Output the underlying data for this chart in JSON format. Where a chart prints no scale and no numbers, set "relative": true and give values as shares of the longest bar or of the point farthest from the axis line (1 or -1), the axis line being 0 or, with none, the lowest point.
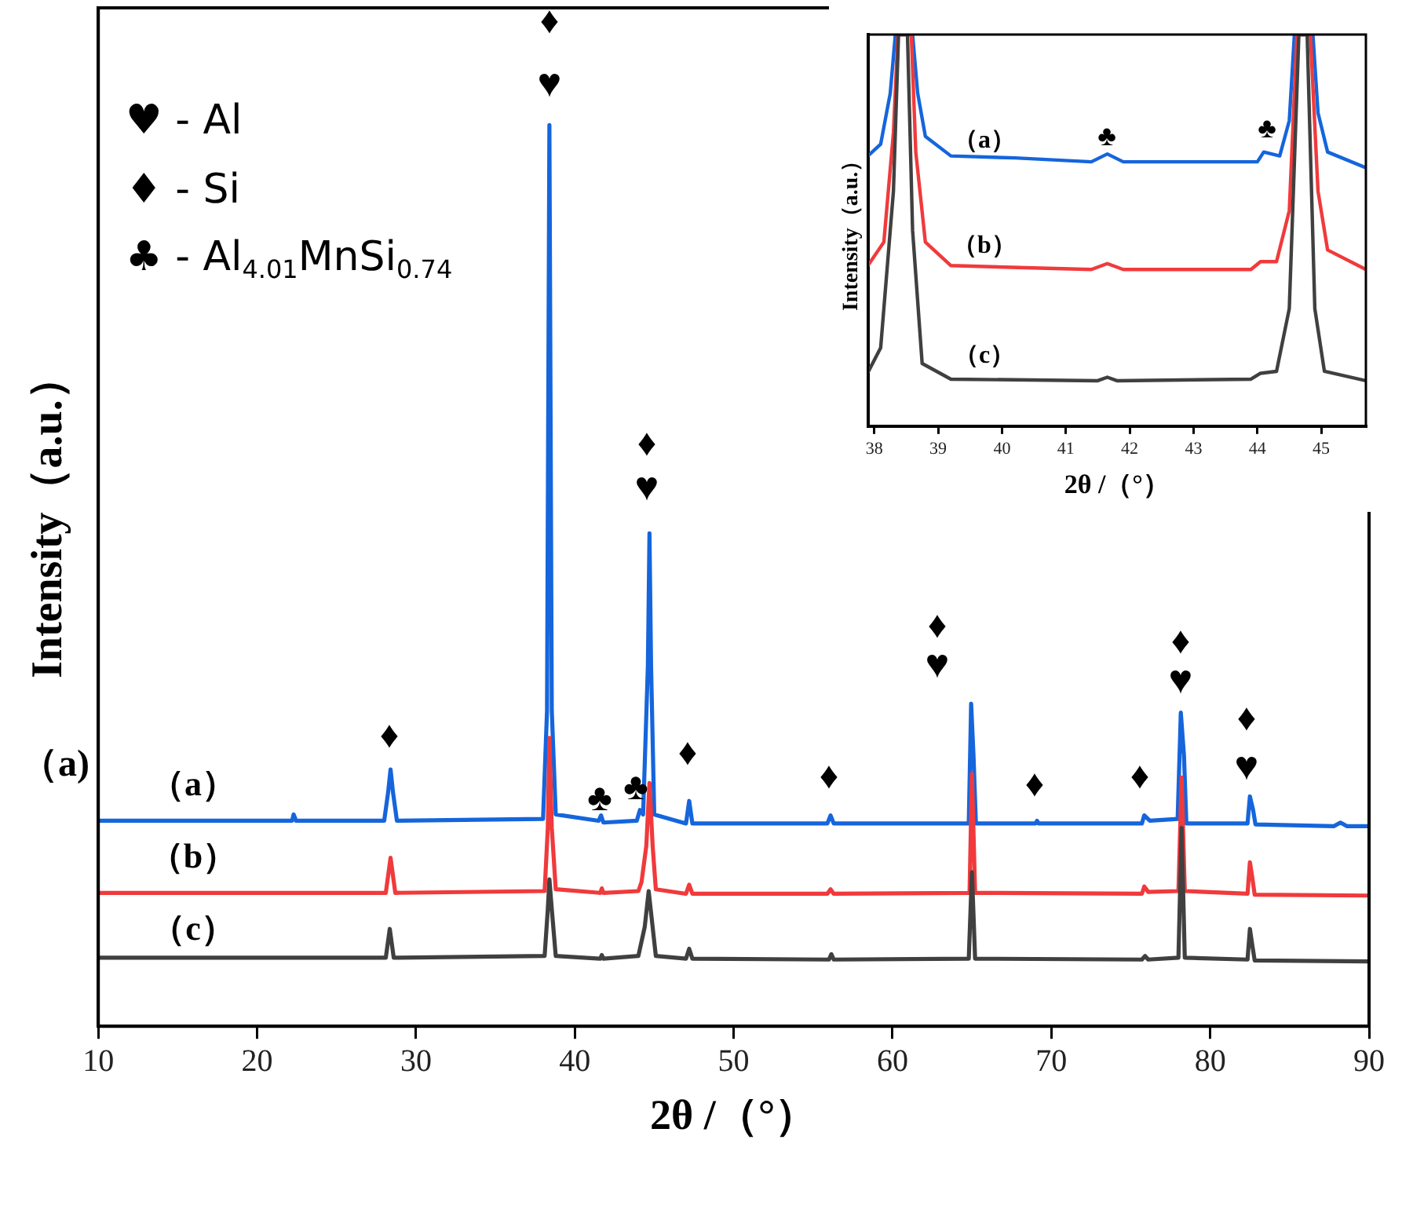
{
  "chart_data": [
    {
      "type": "line",
      "relative": true,
      "xlabel": "2θ /（°）",
      "ylabel": "Intensity（a.u.）",
      "xlim": [
        10,
        90
      ],
      "xticks": [
        10,
        20,
        30,
        40,
        50,
        60,
        70,
        80,
        90
      ],
      "tick_labels": "x",
      "marker": "none",
      "line_style": "solid",
      "series": [
        {
          "color": "#404040",
          "x": [
            10,
            28.1,
            28.35,
            28.6,
            38.1,
            38.3,
            38.4,
            38.55,
            38.8,
            41.6,
            41.7,
            41.8,
            44.0,
            44.4,
            44.65,
            44.9,
            45.1,
            47.0,
            47.2,
            47.4,
            56.0,
            56.15,
            56.3,
            64.8,
            65.0,
            65.2,
            75.7,
            75.9,
            76.1,
            78.0,
            78.2,
            78.4,
            82.35,
            82.5,
            82.65,
            82.8,
            90
          ],
          "values": [
            0.076,
            0.076,
            0.108,
            0.076,
            0.078,
            0.13,
            0.163,
            0.13,
            0.078,
            0.075,
            0.079,
            0.075,
            0.078,
            0.11,
            0.15,
            0.11,
            0.078,
            0.075,
            0.086,
            0.075,
            0.074,
            0.08,
            0.074,
            0.075,
            0.171,
            0.075,
            0.074,
            0.078,
            0.074,
            0.076,
            0.22,
            0.076,
            0.074,
            0.108,
            0.09,
            0.073,
            0.072
          ]
        },
        {
          "color": "#f03a3c",
          "x": [
            10,
            28.1,
            28.4,
            28.7,
            38.1,
            38.3,
            38.4,
            38.55,
            38.8,
            41.6,
            41.7,
            41.8,
            44.0,
            44.2,
            44.5,
            44.7,
            44.9,
            45.1,
            47.0,
            47.2,
            47.4,
            55.9,
            56.1,
            56.3,
            64.85,
            65.0,
            65.2,
            75.7,
            75.85,
            76.1,
            78.0,
            78.2,
            78.4,
            82.35,
            82.5,
            82.65,
            82.8,
            90
          ],
          "values": [
            0.148,
            0.148,
            0.187,
            0.148,
            0.15,
            0.22,
            0.32,
            0.22,
            0.152,
            0.148,
            0.153,
            0.148,
            0.15,
            0.16,
            0.2,
            0.27,
            0.2,
            0.152,
            0.147,
            0.157,
            0.147,
            0.147,
            0.152,
            0.147,
            0.148,
            0.28,
            0.148,
            0.147,
            0.155,
            0.149,
            0.15,
            0.276,
            0.15,
            0.147,
            0.182,
            0.165,
            0.146,
            0.145
          ]
        },
        {
          "color": "#1565dc",
          "x": [
            10,
            22.2,
            22.3,
            22.45,
            28.0,
            28.25,
            28.4,
            28.55,
            28.8,
            38.0,
            38.25,
            38.4,
            38.55,
            38.8,
            41.5,
            41.65,
            41.8,
            43.9,
            44.1,
            44.3,
            44.6,
            44.7,
            44.8,
            45.0,
            47.0,
            47.2,
            47.4,
            55.9,
            56.1,
            56.3,
            64.8,
            64.95,
            65.1,
            65.25,
            69.0,
            69.1,
            69.2,
            75.7,
            75.85,
            76.2,
            77.95,
            78.15,
            78.35,
            78.5,
            82.35,
            82.5,
            82.7,
            82.85,
            87.8,
            88.2,
            88.6,
            90
          ],
          "values": [
            0.228,
            0.228,
            0.235,
            0.228,
            0.228,
            0.26,
            0.285,
            0.26,
            0.228,
            0.23,
            0.35,
            1.0,
            0.35,
            0.235,
            0.228,
            0.234,
            0.226,
            0.228,
            0.24,
            0.235,
            0.4,
            0.547,
            0.4,
            0.235,
            0.225,
            0.25,
            0.225,
            0.225,
            0.234,
            0.225,
            0.225,
            0.358,
            0.3,
            0.225,
            0.225,
            0.228,
            0.225,
            0.225,
            0.234,
            0.228,
            0.23,
            0.348,
            0.3,
            0.225,
            0.225,
            0.255,
            0.24,
            0.224,
            0.222,
            0.226,
            0.222,
            0.222
          ]
        }
      ],
      "annotations": [
        "♥ - Al",
        "♦ - Si",
        "♣ - Al$_{4.01}$MnSi$_{0.74}$",
        "（a)",
        "（a）",
        "（b）",
        "（c）",
        "♦",
        "♦",
        "♥",
        "♣",
        "♣",
        "♦",
        "♥",
        "♦",
        "♦",
        "♦",
        "♥",
        "♦",
        "♦",
        "♦",
        "♥",
        "♦",
        "♥"
      ]
    },
    {
      "type": "line",
      "relative": true,
      "xlabel": "2θ /（°）",
      "ylabel": "Intensity（a.u.）",
      "xlim": [
        37.9,
        45.7
      ],
      "xticks": [
        38,
        39,
        40,
        41,
        42,
        43,
        44,
        45
      ],
      "tick_labels": "x",
      "marker": "none",
      "line_style": "solid",
      "series": [
        {
          "color": "#404040",
          "x": [
            37.9,
            38.1,
            38.3,
            38.38,
            38.52,
            38.6,
            38.75,
            39.2,
            41.5,
            41.65,
            41.8,
            43.9,
            44.05,
            44.3,
            44.5,
            44.65,
            44.78,
            44.9,
            45.05,
            45.7
          ],
          "values": [
            0.137,
            0.2,
            0.6,
            1,
            1,
            0.5,
            0.16,
            0.12,
            0.116,
            0.125,
            0.116,
            0.12,
            0.135,
            0.14,
            0.3,
            1,
            1,
            0.3,
            0.14,
            0.116
          ]
        },
        {
          "color": "#f03a3c",
          "x": [
            37.9,
            38.15,
            38.3,
            38.37,
            38.58,
            38.65,
            38.8,
            39.2,
            41.4,
            41.65,
            41.9,
            43.9,
            44.05,
            44.3,
            44.5,
            44.62,
            44.83,
            44.95,
            45.1,
            45.7
          ],
          "values": [
            0.41,
            0.47,
            0.75,
            1,
            1,
            0.7,
            0.47,
            0.41,
            0.4,
            0.415,
            0.4,
            0.4,
            0.42,
            0.42,
            0.55,
            1,
            1,
            0.6,
            0.45,
            0.4
          ]
        },
        {
          "color": "#1565dc",
          "x": [
            37.9,
            38.1,
            38.25,
            38.33,
            38.6,
            38.68,
            38.8,
            39.2,
            40.2,
            41.4,
            41.65,
            41.9,
            43.0,
            44.0,
            44.1,
            44.35,
            44.5,
            44.58,
            44.87,
            44.95,
            45.1,
            45.7
          ],
          "values": [
            0.69,
            0.72,
            0.85,
            1,
            1,
            0.85,
            0.74,
            0.69,
            0.685,
            0.675,
            0.695,
            0.675,
            0.675,
            0.675,
            0.7,
            0.69,
            0.78,
            1,
            1,
            0.8,
            0.7,
            0.66
          ]
        }
      ],
      "annotations": [
        "（a）",
        "（b）",
        "（c）",
        "♣",
        "♣"
      ]
    }
  ]
}
